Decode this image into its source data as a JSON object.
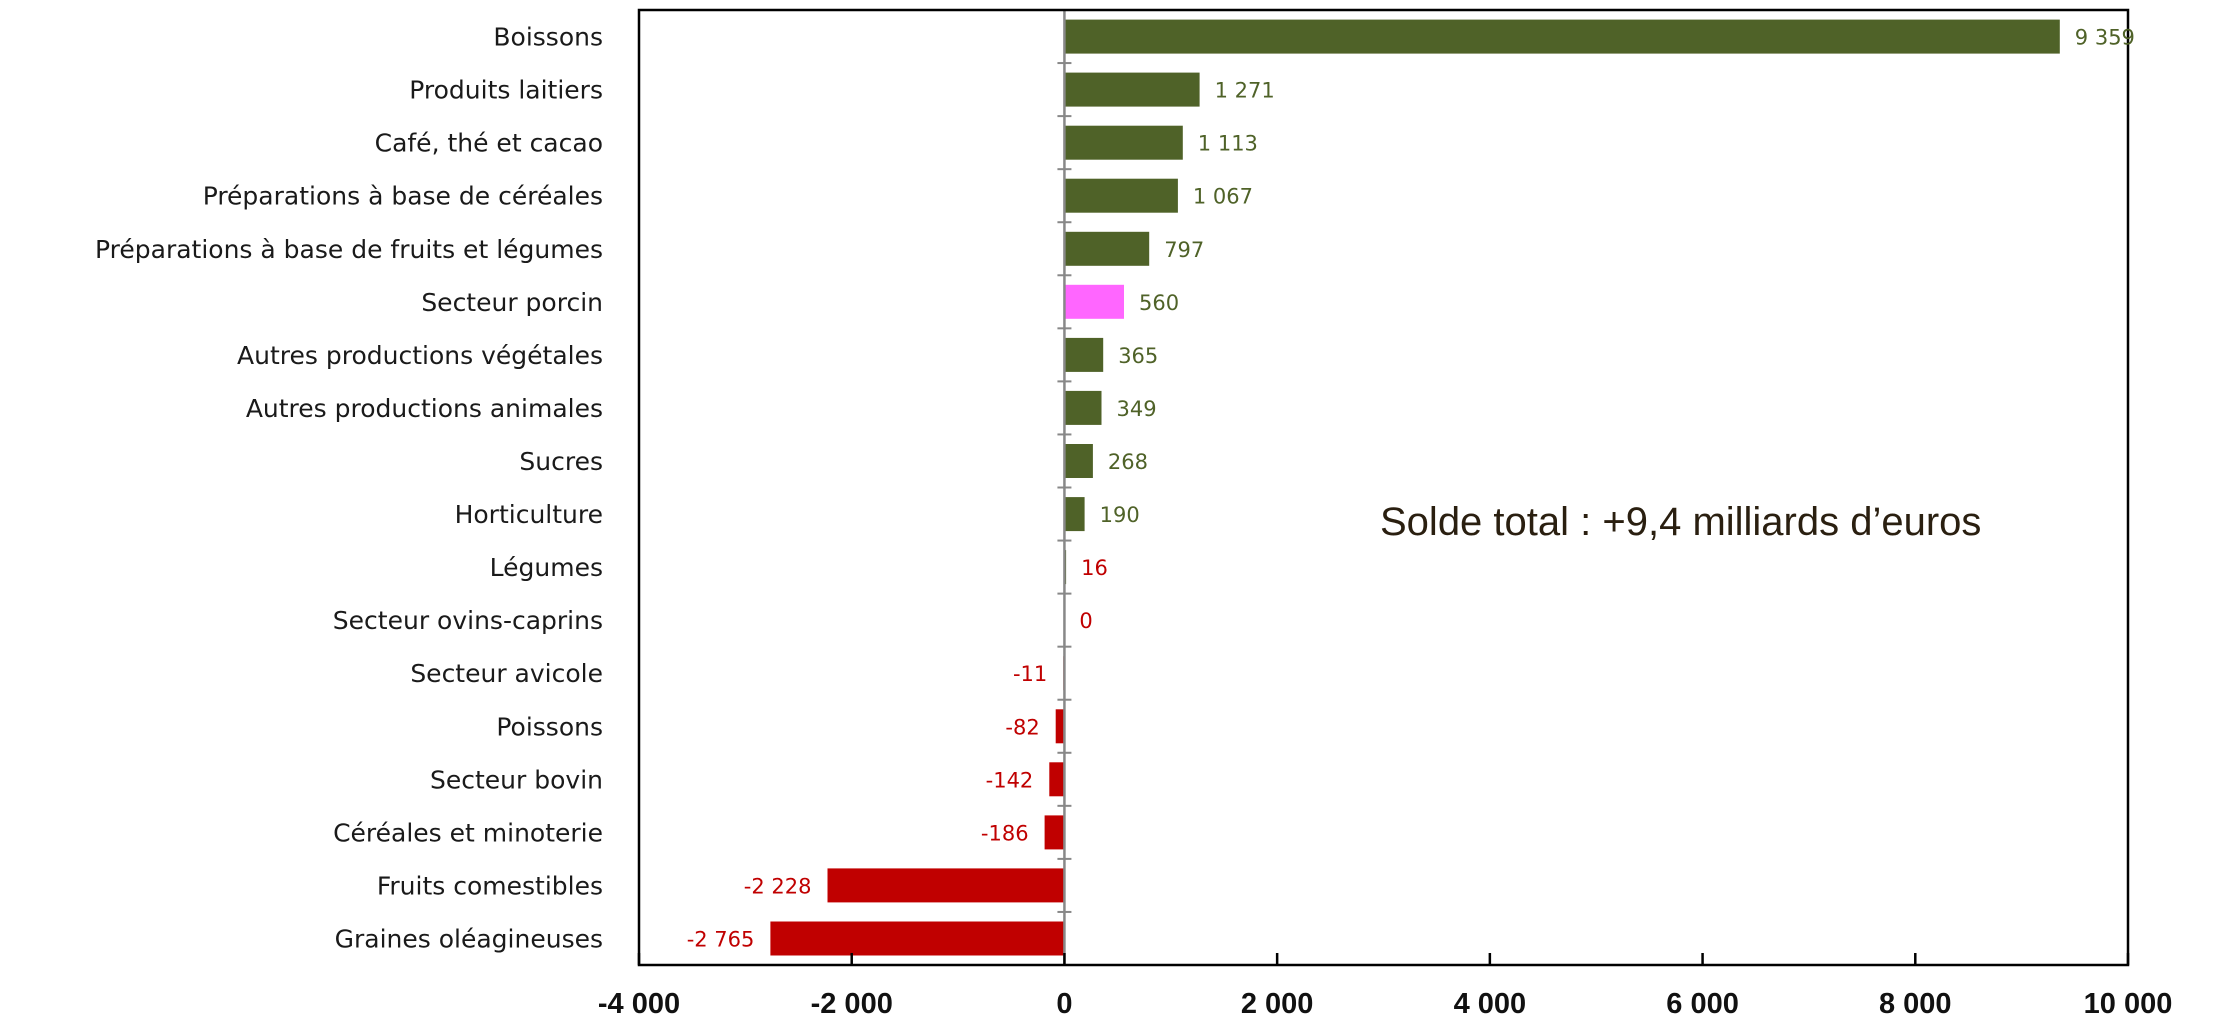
{
  "chart_data": {
    "type": "bar",
    "orientation": "horizontal",
    "categories": [
      "Boissons",
      "Produits laitiers",
      "Café, thé et cacao",
      "Préparations à base de céréales",
      "Préparations à base de fruits et légumes",
      "Secteur porcin",
      "Autres productions végétales",
      "Autres productions animales",
      "Sucres",
      "Horticulture",
      "Légumes",
      "Secteur ovins-caprins",
      "Secteur avicole",
      "Poissons",
      "Secteur bovin",
      "Céréales et minoterie",
      "Fruits comestibles",
      "Graines oléagineuses"
    ],
    "values": [
      9359,
      1271,
      1113,
      1067,
      797,
      560,
      365,
      349,
      268,
      190,
      16,
      0,
      -11,
      -82,
      -142,
      -186,
      -2228,
      -2765
    ],
    "value_labels": [
      "9 359",
      "1 271",
      "1 113",
      "1 067",
      "797",
      "560",
      "365",
      "349",
      "268",
      "190",
      "16",
      "0",
      "-11",
      "-82",
      "-142",
      "-186",
      "-2 228",
      "-2 765"
    ],
    "highlight_index": 5,
    "xlim": [
      -4000,
      10000
    ],
    "xticks": [
      -4000,
      -2000,
      0,
      2000,
      4000,
      6000,
      8000,
      10000
    ],
    "xtick_labels": [
      "-4 000",
      "-2 000",
      "0",
      "2 000",
      "4 000",
      "6 000",
      "8 000",
      "10 000"
    ],
    "title": "",
    "xlabel": "",
    "ylabel": "",
    "grid": false,
    "annotation": "Solde total : +9,4 milliards d’euros",
    "colors": {
      "positive_bar": "#4f6228",
      "negative_bar": "#c00000",
      "highlight_bar": "#ff66ff",
      "positive_label": "#4f6228",
      "negative_label": "#c00000",
      "axis": "#000000",
      "zero_line": "#888888"
    }
  }
}
